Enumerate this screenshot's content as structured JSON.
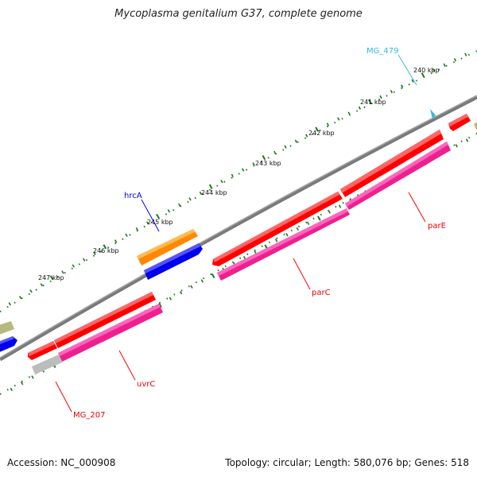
{
  "title": "Mycoplasma genitalium G37, complete genome",
  "footer": {
    "accession": "Accession: NC_000908",
    "summary": "Topology: circular; Length: 580,076 bp; Genes: 518"
  },
  "colors": {
    "backbone": "#7a7a7a",
    "tick": "#1a7a1a",
    "red": "#ff0000",
    "magenta": "#ee2090",
    "orange": "#ff8800",
    "blue": "#0000ee",
    "cyan": "#33bbdd",
    "olive": "#b8b880",
    "gray": "#bcbcbc"
  },
  "scale": {
    "unit": "kbp",
    "labels": [
      "240 kbp",
      "241 kbp",
      "242 kbp",
      "243 kbp",
      "244 kbp",
      "245 kbp",
      "246 kbp",
      "247 kbp"
    ]
  },
  "genes": [
    {
      "name": "MG_479",
      "color": "cyan"
    },
    {
      "name": "hrcA",
      "color": "blue"
    },
    {
      "name": "parE",
      "color": "red"
    },
    {
      "name": "parC",
      "color": "red"
    },
    {
      "name": "uvrC",
      "color": "red"
    },
    {
      "name": "MG_207",
      "color": "red"
    }
  ]
}
